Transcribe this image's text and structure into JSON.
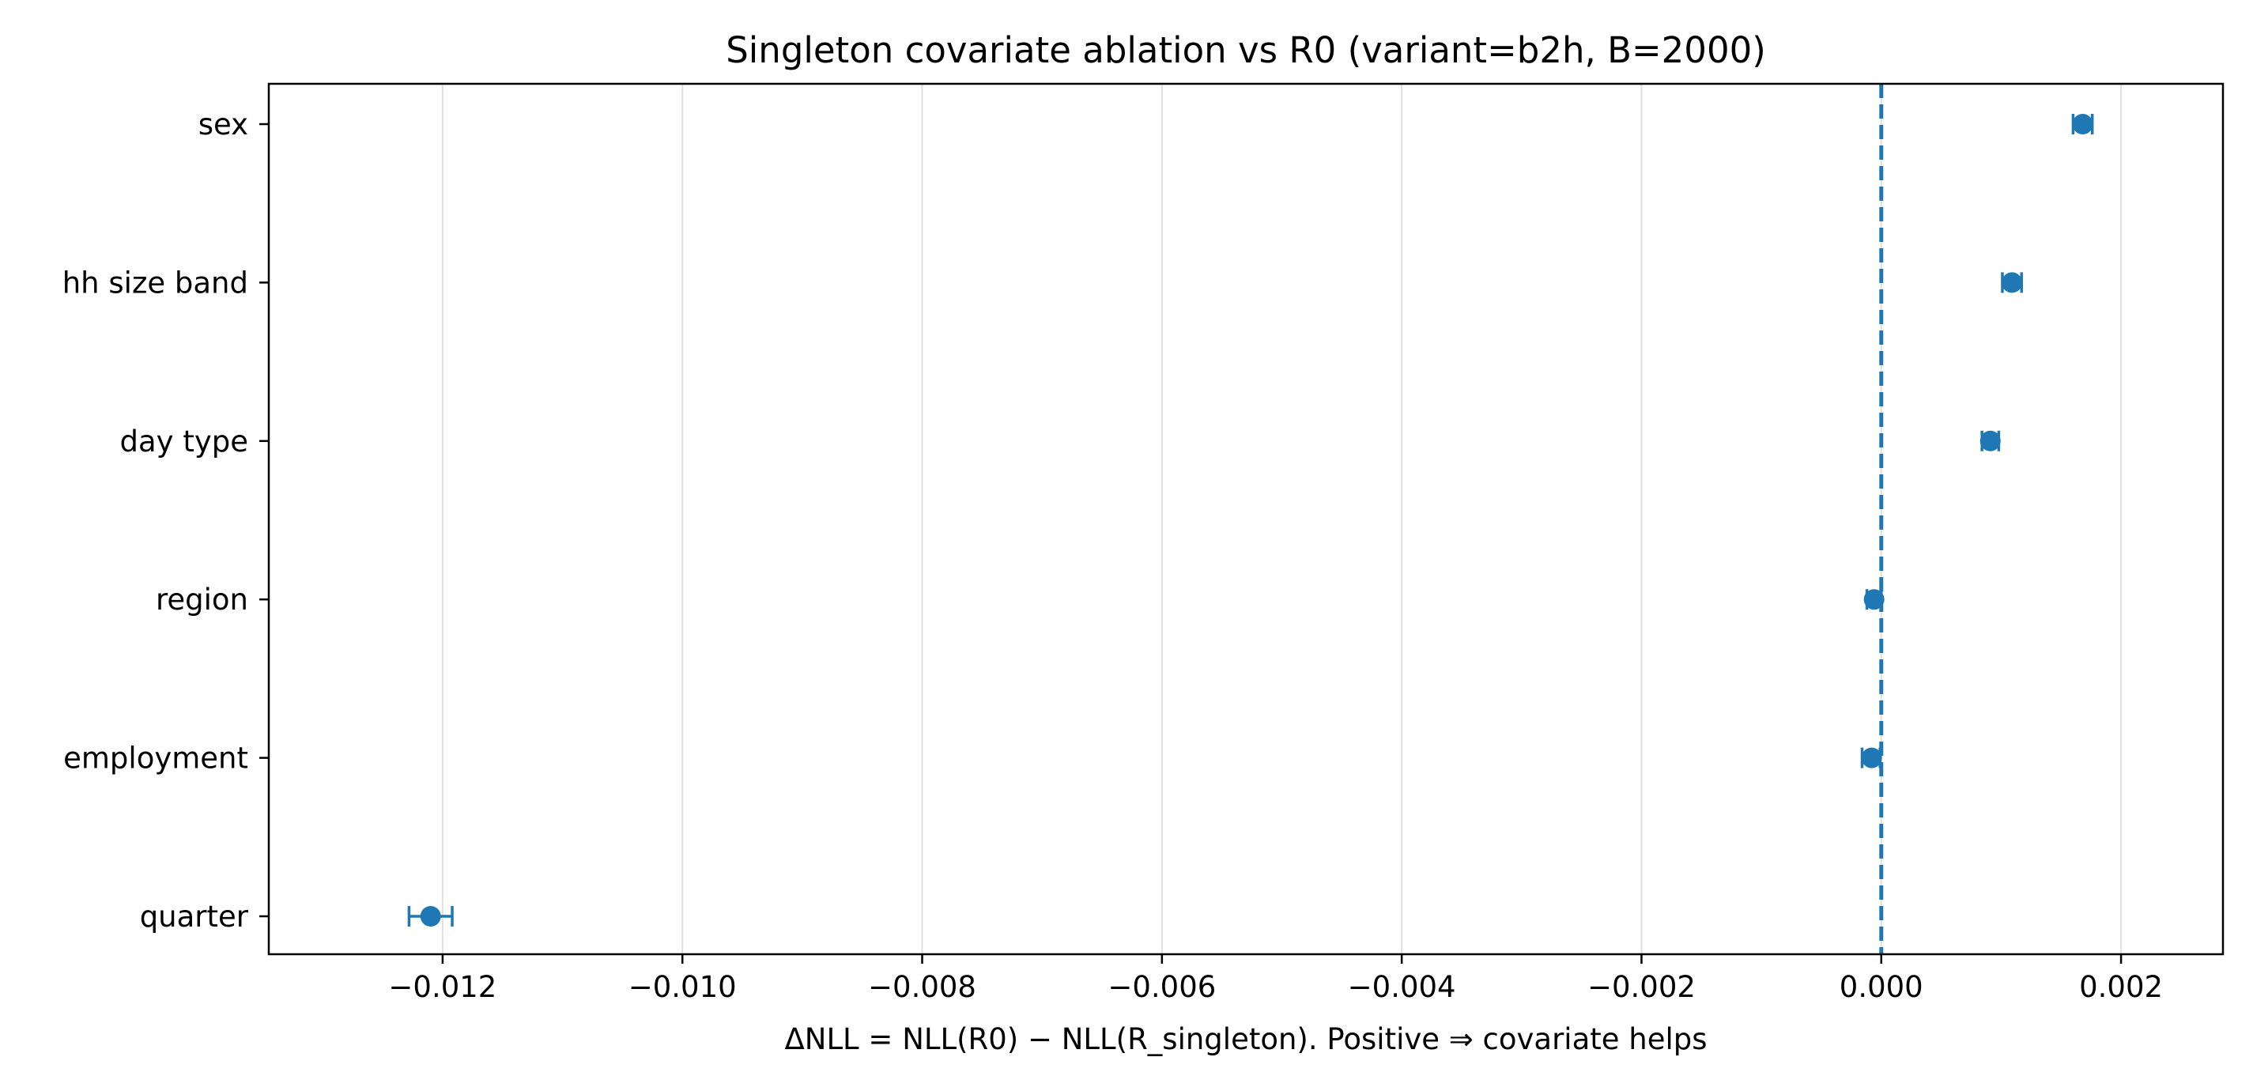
{
  "chart_data": {
    "type": "scatter",
    "title": "Singleton covariate ablation vs R0 (variant=b2h, B=2000)",
    "xlabel": "ΔNLL = NLL(R0) − NLL(R_singleton). Positive ⇒ covariate helps",
    "ylabel": "",
    "xlim": [
      -0.01345,
      0.00285
    ],
    "categories": [
      "sex",
      "hh size band",
      "day type",
      "region",
      "employment",
      "quarter"
    ],
    "x_ticks": [
      -0.012,
      -0.01,
      -0.008,
      -0.006,
      -0.004,
      -0.002,
      0.0,
      0.002
    ],
    "x_tick_labels": [
      "−0.012",
      "−0.010",
      "−0.008",
      "−0.006",
      "−0.004",
      "−0.002",
      "0.000",
      "0.002"
    ],
    "points": [
      {
        "category": "sex",
        "value": 0.00168,
        "ci_low": 0.0016,
        "ci_high": 0.00176
      },
      {
        "category": "hh size band",
        "value": 0.00109,
        "ci_low": 0.00101,
        "ci_high": 0.00117
      },
      {
        "category": "day type",
        "value": 0.00091,
        "ci_low": 0.00084,
        "ci_high": 0.00098
      },
      {
        "category": "region",
        "value": -6e-05,
        "ci_low": -0.00012,
        "ci_high": 0.0
      },
      {
        "category": "employment",
        "value": -8e-05,
        "ci_low": -0.00016,
        "ci_high": -1e-05
      },
      {
        "category": "quarter",
        "value": -0.0121,
        "ci_low": -0.01228,
        "ci_high": -0.01192
      }
    ],
    "reference_line": {
      "x": 0.0,
      "style": "dashed"
    },
    "grid": {
      "x": true,
      "y": false
    },
    "colors": {
      "marker": "#1f77b4",
      "reference": "#1f77b4",
      "grid": "#e0e0e0",
      "axes": "#000000"
    }
  }
}
